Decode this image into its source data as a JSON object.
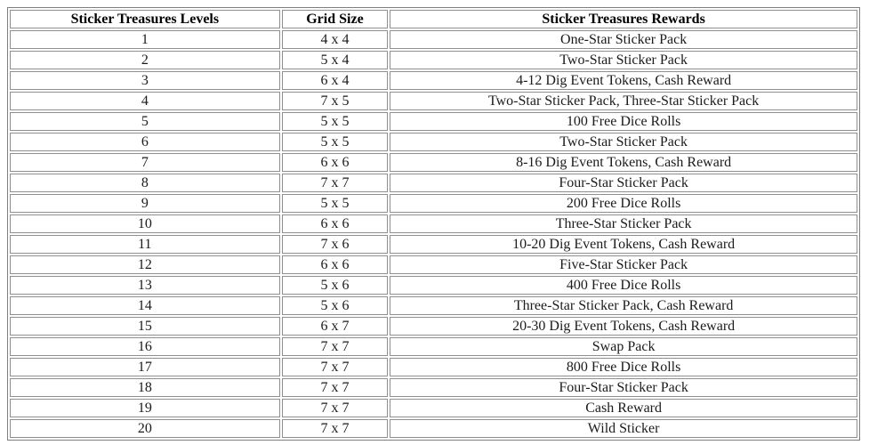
{
  "table": {
    "headers": [
      "Sticker Treasures Levels",
      "Grid Size",
      "Sticker Treasures Rewards"
    ],
    "rows": [
      {
        "level": "1",
        "grid": "4 x 4",
        "reward": "One-Star Sticker Pack"
      },
      {
        "level": "2",
        "grid": "5 x 4",
        "reward": "Two-Star Sticker Pack"
      },
      {
        "level": "3",
        "grid": "6 x 4",
        "reward": "4-12 Dig Event Tokens, Cash Reward"
      },
      {
        "level": "4",
        "grid": "7 x 5",
        "reward": "Two-Star Sticker Pack, Three-Star Sticker Pack"
      },
      {
        "level": "5",
        "grid": "5 x 5",
        "reward": "100 Free Dice Rolls"
      },
      {
        "level": "6",
        "grid": "5 x 5",
        "reward": "Two-Star Sticker Pack"
      },
      {
        "level": "7",
        "grid": "6 x 6",
        "reward": "8-16 Dig Event Tokens, Cash Reward"
      },
      {
        "level": "8",
        "grid": "7 x 7",
        "reward": "Four-Star Sticker Pack"
      },
      {
        "level": "9",
        "grid": "5 x 5",
        "reward": "200 Free Dice Rolls"
      },
      {
        "level": "10",
        "grid": "6 x 6",
        "reward": "Three-Star Sticker Pack"
      },
      {
        "level": "11",
        "grid": "7 x 6",
        "reward": "10-20 Dig Event Tokens, Cash Reward"
      },
      {
        "level": "12",
        "grid": "6 x 6",
        "reward": "Five-Star Sticker Pack"
      },
      {
        "level": "13",
        "grid": "5 x 6",
        "reward": "400 Free Dice Rolls"
      },
      {
        "level": "14",
        "grid": "5 x 6",
        "reward": "Three-Star Sticker Pack, Cash Reward"
      },
      {
        "level": "15",
        "grid": "6 x 7",
        "reward": "20-30 Dig Event Tokens, Cash Reward"
      },
      {
        "level": "16",
        "grid": "7 x 7",
        "reward": "Swap Pack"
      },
      {
        "level": "17",
        "grid": "7 x 7",
        "reward": "800 Free Dice Rolls"
      },
      {
        "level": "18",
        "grid": "7 x 7",
        "reward": "Four-Star Sticker Pack"
      },
      {
        "level": "19",
        "grid": "7 x 7",
        "reward": "Cash Reward"
      },
      {
        "level": "20",
        "grid": "7 x 7",
        "reward": "Wild Sticker"
      }
    ]
  },
  "colors": {
    "background": "#ffffff",
    "outer_border": "#7f7f7f",
    "cell_border": "#8f8f8f",
    "text": "#1b1b1b",
    "header_text": "#000000"
  }
}
